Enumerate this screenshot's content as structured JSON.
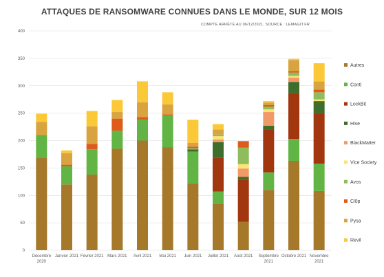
{
  "title": "ATTAQUES DE RANSOMWARE CONNUES DANS LE MONDE, SUR 12 MOIS",
  "subtitle": "COMPTE ARRÊTÉ AU 06/12/2021. SOURCE : LEMAGIT.FR",
  "colors": {
    "Autres": "#A5782A",
    "Conti": "#62B544",
    "LockBit": "#A2360F",
    "Hive": "#3F6D2B",
    "BlackMatter": "#F29A67",
    "Vice Society": "#FAE474",
    "Avos": "#8FBD5D",
    "Cl0p": "#DE5B1C",
    "Pysa": "#D9A440",
    "Revil": "#FBC838"
  },
  "chart_data": {
    "type": "bar",
    "stacked": true,
    "title": "ATTAQUES DE RANSOMWARE CONNUES DANS LE MONDE, SUR 12 MOIS",
    "subtitle": "COMPTE ARRÊTÉ AU 06/12/2021. SOURCE : LEMAGIT.FR",
    "ylim": [
      0,
      400
    ],
    "yticks": [
      0,
      50,
      100,
      150,
      200,
      250,
      300,
      350,
      400
    ],
    "grid": true,
    "legend_position": "right",
    "categories": [
      [
        "Décembre",
        "2020"
      ],
      [
        "Janvier 2021"
      ],
      [
        "Février 2021"
      ],
      [
        "Mars 2021"
      ],
      [
        "Avril 2021"
      ],
      [
        "Mai 2021"
      ],
      [
        "Juin 2021"
      ],
      [
        "Juillet 2021"
      ],
      [
        "Août 2021"
      ],
      [
        "Septembre",
        "2021"
      ],
      [
        "Octobre 2021"
      ],
      [
        "Novembre",
        "2021"
      ]
    ],
    "series": [
      {
        "name": "Autres",
        "values": [
          168,
          120,
          138,
          185,
          200,
          188,
          122,
          85,
          52,
          110,
          163,
          108
        ]
      },
      {
        "name": "Conti",
        "values": [
          42,
          33,
          46,
          33,
          38,
          58,
          58,
          22,
          0,
          32,
          40,
          50
        ]
      },
      {
        "name": "LockBit",
        "values": [
          0,
          0,
          0,
          0,
          0,
          0,
          0,
          62,
          76,
          78,
          84,
          92
        ]
      },
      {
        "name": "Hive",
        "values": [
          0,
          0,
          0,
          0,
          0,
          0,
          4,
          28,
          6,
          7,
          20,
          22
        ]
      },
      {
        "name": "BlackMatter",
        "values": [
          0,
          0,
          0,
          0,
          0,
          0,
          0,
          5,
          15,
          25,
          8,
          0
        ]
      },
      {
        "name": "Vice Society",
        "values": [
          0,
          0,
          0,
          0,
          0,
          0,
          0,
          6,
          8,
          5,
          3,
          3
        ]
      },
      {
        "name": "Avos",
        "values": [
          0,
          0,
          0,
          0,
          0,
          0,
          2,
          3,
          30,
          5,
          6,
          13
        ]
      },
      {
        "name": "Cl0p",
        "values": [
          0,
          3,
          10,
          22,
          5,
          2,
          3,
          0,
          12,
          3,
          3,
          5
        ]
      },
      {
        "name": "Pysa",
        "values": [
          24,
          21,
          32,
          12,
          27,
          18,
          7,
          9,
          0,
          4,
          20,
          15
        ]
      },
      {
        "name": "Revil",
        "values": [
          15,
          5,
          28,
          22,
          38,
          22,
          42,
          10,
          0,
          3,
          2,
          33
        ]
      }
    ]
  }
}
